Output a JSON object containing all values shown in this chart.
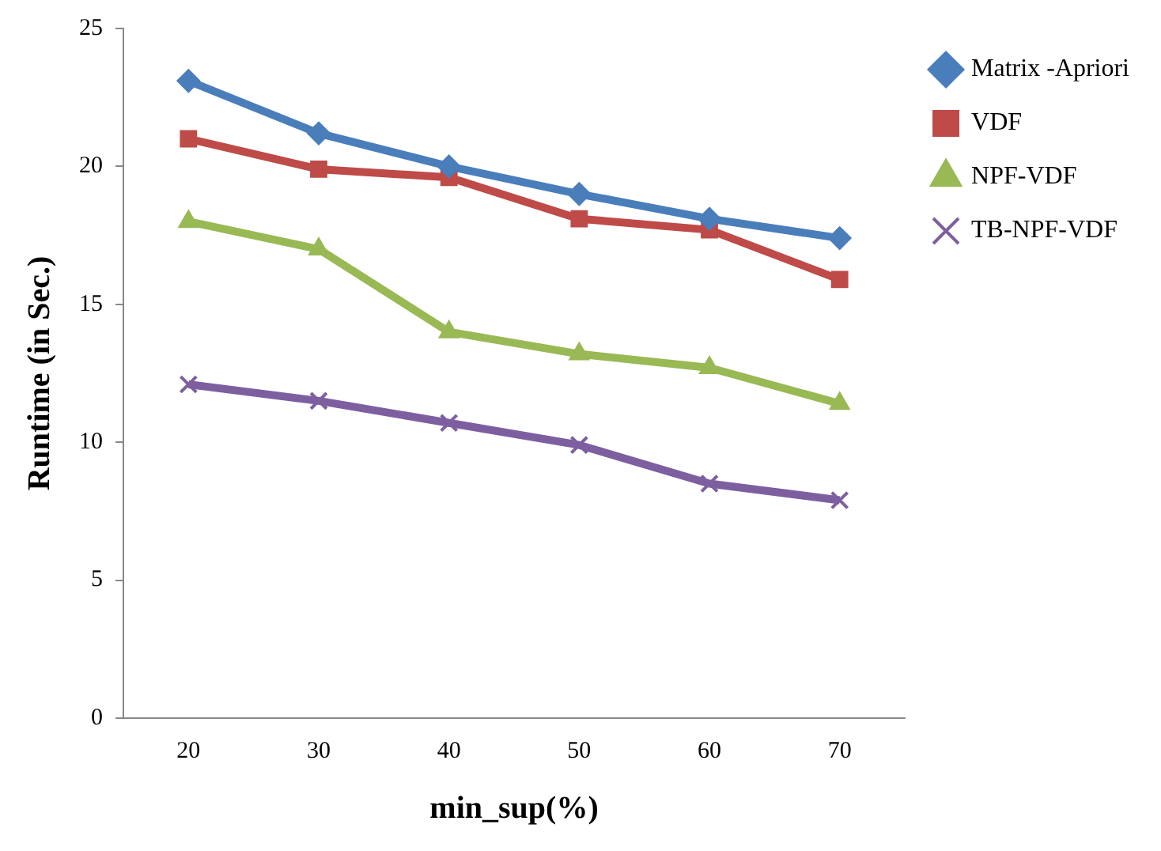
{
  "chart_data": {
    "type": "line",
    "xlabel": "min_sup(%)",
    "ylabel": "Runtime (in Sec.)",
    "categories": [
      "20",
      "30",
      "40",
      "50",
      "60",
      "70"
    ],
    "ylim": [
      0,
      25
    ],
    "yticks": [
      0,
      5,
      10,
      15,
      20,
      25
    ],
    "grid": false,
    "legend": "right",
    "series": [
      {
        "name": "Matrix -Apriori",
        "color": "#4a7ebb",
        "marker": "diamond",
        "values": [
          23.1,
          21.2,
          20.0,
          19.0,
          18.1,
          17.4
        ]
      },
      {
        "name": "VDF",
        "color": "#be4b48",
        "marker": "square",
        "values": [
          21.0,
          19.9,
          19.6,
          18.1,
          17.7,
          15.9
        ]
      },
      {
        "name": "NPF-VDF",
        "color": "#98b954",
        "marker": "triangle",
        "values": [
          18.0,
          17.0,
          14.0,
          13.2,
          12.7,
          11.4
        ]
      },
      {
        "name": "TB-NPF-VDF",
        "color": "#7d5fa0",
        "marker": "cross",
        "values": [
          12.1,
          11.5,
          10.7,
          9.9,
          8.5,
          7.9
        ]
      }
    ]
  }
}
